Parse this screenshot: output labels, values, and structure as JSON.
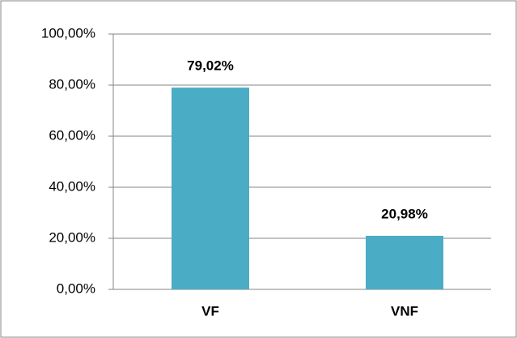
{
  "chart_data": {
    "type": "bar",
    "categories": [
      "VF",
      "VNF"
    ],
    "values": [
      79.02,
      20.98
    ],
    "value_labels": [
      "79,02%",
      "20,98%"
    ],
    "color": "#4bacc6",
    "ylim": [
      0,
      100
    ],
    "yticks": [
      {
        "value": 0,
        "label": "0,00%"
      },
      {
        "value": 20,
        "label": "20,00%"
      },
      {
        "value": 40,
        "label": "40,00%"
      },
      {
        "value": 60,
        "label": "60,00%"
      },
      {
        "value": 80,
        "label": "80,00%"
      },
      {
        "value": 100,
        "label": "100,00%"
      }
    ],
    "grid": true
  }
}
